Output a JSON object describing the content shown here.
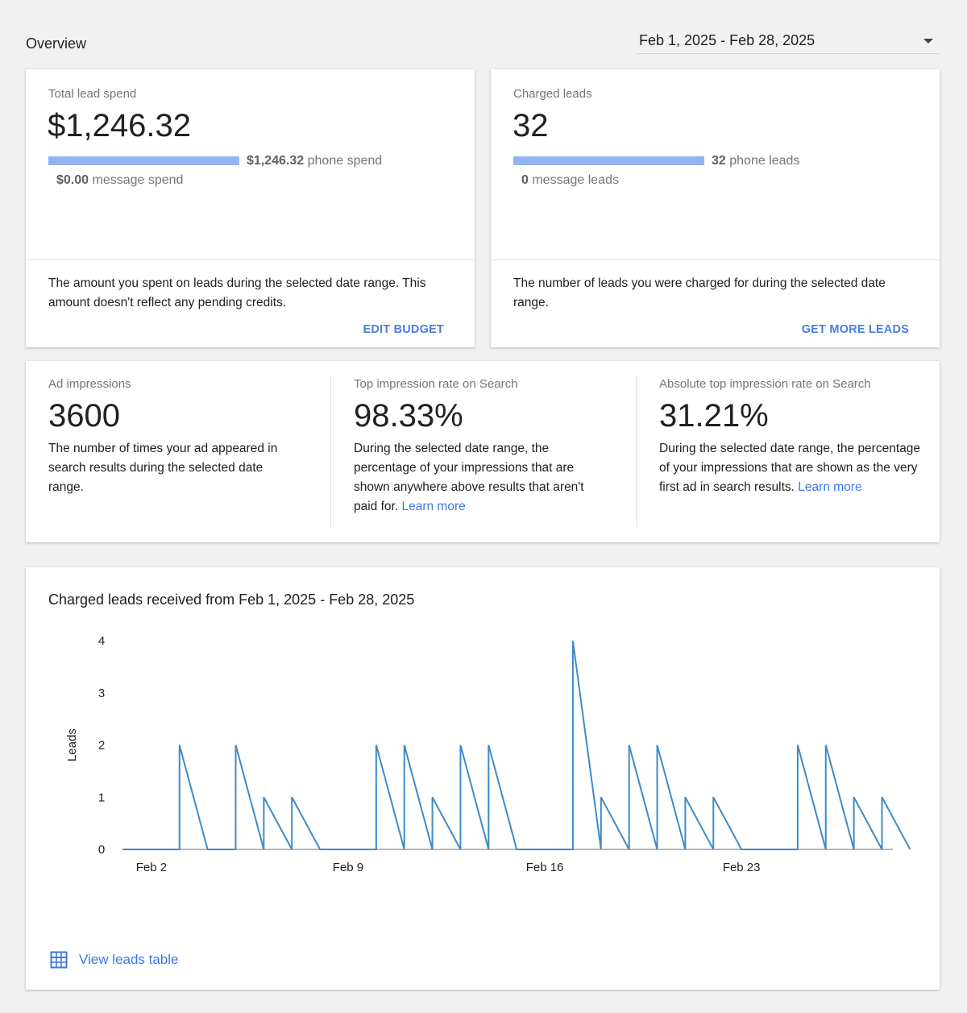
{
  "header": {
    "title": "Overview",
    "date_range": "Feb 1, 2025 - Feb 28, 2025"
  },
  "spend_card": {
    "label": "Total lead spend",
    "value": "$1,246.32",
    "phone_amount": "$1,246.32",
    "phone_suffix": " phone spend",
    "message_amount": "$0.00",
    "message_suffix": " message spend",
    "phone_share_percent": 100,
    "description": "The amount you spent on leads during the selected date range. This amount doesn't reflect any pending credits.",
    "action": "EDIT BUDGET"
  },
  "leads_card": {
    "label": "Charged leads",
    "value": "32",
    "phone_amount": "32",
    "phone_suffix": " phone leads",
    "message_amount": "0",
    "message_suffix": " message leads",
    "phone_share_percent": 100,
    "description": "The number of leads you were charged for during the selected date range.",
    "action": "GET MORE LEADS"
  },
  "metrics": [
    {
      "label": "Ad impressions",
      "value": "3600",
      "description": "The number of times your ad appeared in search results during the selected date range.",
      "link": ""
    },
    {
      "label": "Top impression rate on Search",
      "value": "98.33%",
      "description": "During the selected date range, the percentage of your impressions that are shown anywhere above results that aren't paid for.",
      "link": "Learn more"
    },
    {
      "label": "Absolute top impression rate on Search",
      "value": "31.21%",
      "description": "During the selected date range, the percentage of your impressions that are shown as the very first ad in search results.",
      "link": "Learn more"
    }
  ],
  "chart_card": {
    "title": "Charged leads received from Feb 1, 2025 - Feb 28, 2025",
    "view_table": "View leads table"
  },
  "chart_data": {
    "type": "line",
    "title": "Charged leads received from Feb 1, 2025 - Feb 28, 2025",
    "ylabel": "Leads",
    "xlabel": "",
    "ylim": [
      0,
      4
    ],
    "yticks": [
      "0",
      "1",
      "2",
      "3",
      "4"
    ],
    "xticks": [
      {
        "label": "Feb 2",
        "day": 2
      },
      {
        "label": "Feb 9",
        "day": 9
      },
      {
        "label": "Feb 16",
        "day": 16
      },
      {
        "label": "Feb 23",
        "day": 23
      }
    ],
    "days": [
      1,
      2,
      3,
      4,
      5,
      6,
      7,
      8,
      9,
      10,
      11,
      12,
      13,
      14,
      15,
      16,
      17,
      18,
      19,
      20,
      21,
      22,
      23,
      24,
      25,
      26,
      27,
      28
    ],
    "values": [
      0,
      0,
      2,
      0,
      2,
      1,
      1,
      0,
      0,
      2,
      2,
      1,
      2,
      2,
      0,
      0,
      4,
      1,
      2,
      2,
      1,
      1,
      0,
      0,
      2,
      2,
      1,
      1
    ],
    "color": "#3d8bc9",
    "grid": false
  },
  "colors": {
    "accent": "#4a7de0",
    "bar": "#92b3f2",
    "line": "#3d8bc9"
  }
}
